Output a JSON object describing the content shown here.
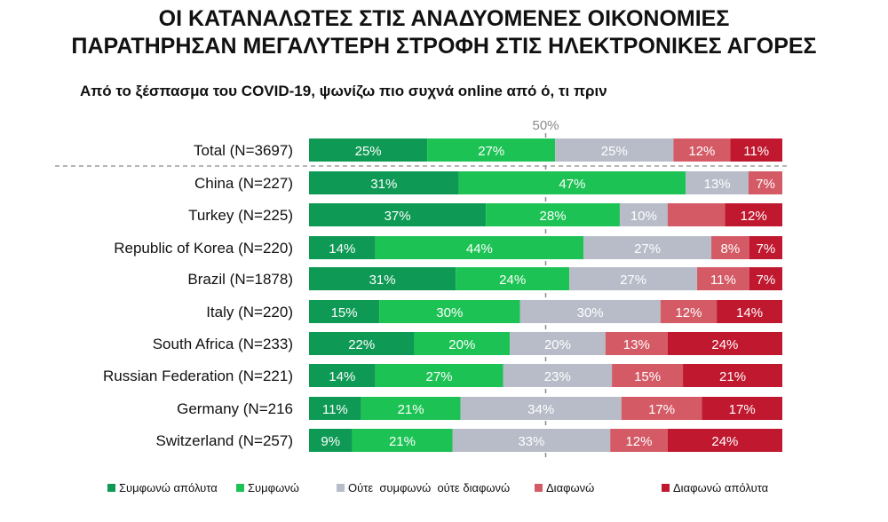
{
  "title_line1": "ΟΙ ΚΑΤΑΝΑΛΩΤΕΣ ΣΤΙΣ ΑΝΑΔΥΟΜΕΝΕΣ ΟΙΚΟΝΟΜΙΕΣ",
  "title_line2": "ΠΑΡΑΤΗΡΗΣΑΝ ΜΕΓΑΛΥΤΕΡΗ ΣΤΡΟΦΗ ΣΤΙΣ ΗΛΕΚΤΡΟΝΙΚΕΣ ΑΓΟΡΕΣ",
  "subtitle": "Από το ξέσπασμα του COVID-19, ψωνίζω πιο συχνά online από ό, τι πριν",
  "chart_data": {
    "type": "bar",
    "orientation": "horizontal",
    "stacked": "100%",
    "reference_label": "50%",
    "categories": [
      "Total (N=3697)",
      "China (N=227)",
      "Turkey (N=225)",
      "Republic of Korea (N=220)",
      "Brazil (N=1878)",
      "Italy (N=220)",
      "South Africa (N=233)",
      "Russian Federation (N=221)",
      "Germany (N=216",
      "Switzerland (N=257)"
    ],
    "series": [
      {
        "name": "Συμφωνώ απόλυτα",
        "color": "#0e9a55",
        "values": [
          25,
          31,
          37,
          14,
          31,
          15,
          22,
          14,
          11,
          9
        ]
      },
      {
        "name": "Συμφωνώ",
        "color": "#1cc354",
        "values": [
          27,
          47,
          28,
          44,
          24,
          30,
          20,
          27,
          21,
          21
        ]
      },
      {
        "name": "Ούτε  συμφωνώ  ούτε διαφωνώ",
        "color": "#b7bcc8",
        "values": [
          25,
          13,
          10,
          27,
          27,
          30,
          20,
          23,
          34,
          33
        ]
      },
      {
        "name": "Διαφωνώ",
        "color": "#d45b66",
        "values": [
          12,
          7,
          12,
          8,
          11,
          12,
          13,
          15,
          17,
          12
        ]
      },
      {
        "name": "Διαφωνώ απόλυτα",
        "color": "#c0182f",
        "values": [
          11,
          0,
          12,
          7,
          7,
          14,
          24,
          21,
          17,
          24
        ]
      }
    ],
    "labels": [
      [
        "25%",
        "27%",
        "25%",
        "12%",
        "11%"
      ],
      [
        "31%",
        "47%",
        "13%",
        "7%",
        ""
      ],
      [
        "37%",
        "28%",
        "10%",
        "",
        "12%"
      ],
      [
        "14%",
        "44%",
        "27%",
        "8%",
        "7%"
      ],
      [
        "31%",
        "24%",
        "27%",
        "11%",
        "7%"
      ],
      [
        "15%",
        "30%",
        "30%",
        "12%",
        "14%"
      ],
      [
        "22%",
        "20%",
        "20%",
        "13%",
        "24%"
      ],
      [
        "14%",
        "27%",
        "23%",
        "15%",
        "21%"
      ],
      [
        "11%",
        "21%",
        "34%",
        "17%",
        "17%"
      ],
      [
        "9%",
        "21%",
        "33%",
        "12%",
        "24%"
      ]
    ],
    "legend_position": "bottom"
  }
}
